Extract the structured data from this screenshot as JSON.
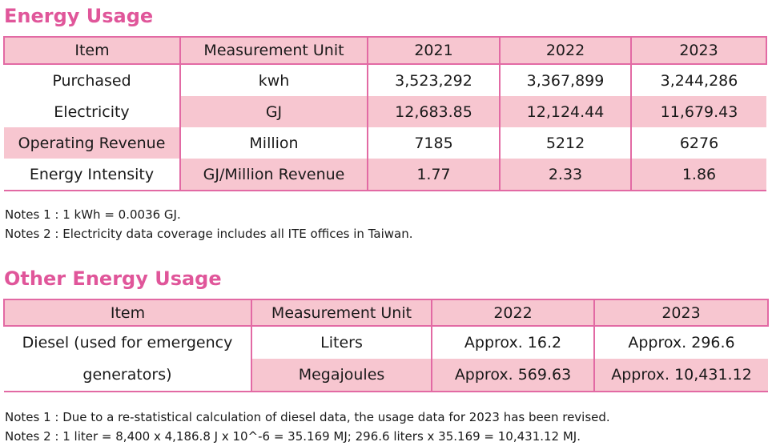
{
  "energy": {
    "title": "Energy Usage",
    "headers": [
      "Item",
      "Measurement Unit",
      "2021",
      "2022",
      "2023"
    ],
    "purchased_label": "Purchased",
    "electricity_label": "Electricity",
    "rows": [
      {
        "unit": "kwh",
        "values": [
          "3,523,292",
          "3,367,899",
          "3,244,286"
        ]
      },
      {
        "unit": "GJ",
        "values": [
          "12,683.85",
          "12,124.44",
          "11,679.43"
        ]
      },
      {
        "item": "Operating Revenue",
        "unit": "Million",
        "values": [
          "7185",
          "5212",
          "6276"
        ]
      },
      {
        "item": "Energy Intensity",
        "unit": "GJ/Million Revenue",
        "values": [
          "1.77",
          "2.33",
          "1.86"
        ]
      }
    ],
    "notes": [
      "Notes 1 : 1 kWh = 0.0036 GJ.",
      "Notes 2 : Electricity data coverage includes all ITE offices in Taiwan."
    ]
  },
  "other": {
    "title": "Other Energy Usage",
    "headers": [
      "Item",
      "Measurement Unit",
      "2022",
      "2023"
    ],
    "item_label": "Diesel (used for emergency generators)",
    "rows": [
      {
        "unit": "Liters",
        "values": [
          "Approx. 16.2",
          "Approx. 296.6"
        ]
      },
      {
        "unit": "Megajoules",
        "values": [
          "Approx. 569.63",
          "Approx. 10,431.12"
        ]
      }
    ],
    "notes": [
      "Notes 1 : Due to a re-statistical calculation of diesel data, the usage data for 2023 has been revised.",
      "Notes 2 : 1 liter = 8,400 x 4,186.8 J x 10^-6 = 35.169 MJ; 296.6 liters x 35.169 = 10,431.12 MJ."
    ]
  }
}
